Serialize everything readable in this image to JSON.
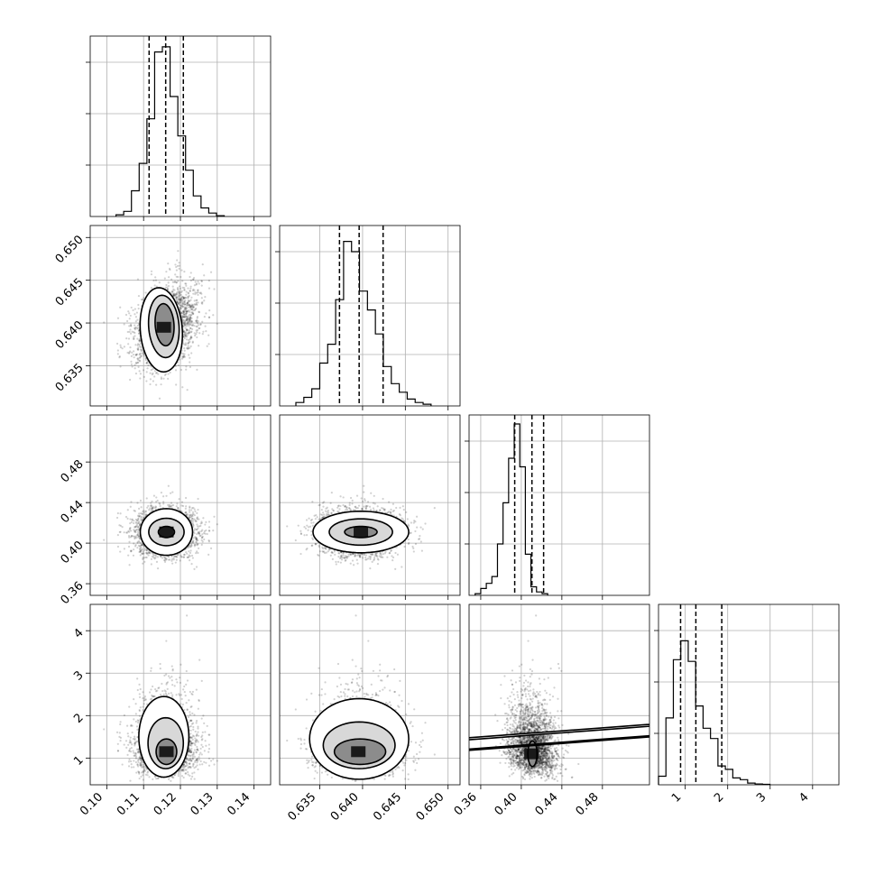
{
  "chart_data": {
    "type": "corner",
    "grid": true,
    "parameters": [
      {
        "ticks": [
          0.1,
          0.11,
          0.12,
          0.13,
          0.14
        ],
        "tick_labels": [
          "0.10",
          "0.11",
          "0.12",
          "0.13",
          "0.14"
        ],
        "range": [
          0.0955,
          0.1445
        ],
        "mean": 0.116,
        "sd": 0.0042,
        "quantiles": [
          0.1115,
          0.116,
          0.1208
        ]
      },
      {
        "ticks": [
          0.635,
          0.64,
          0.645,
          0.65
        ],
        "tick_labels": [
          "0.635",
          "0.640",
          "0.645",
          "0.650"
        ],
        "range": [
          0.6303,
          0.6514
        ],
        "mean": 0.6396,
        "sd": 0.0024,
        "quantiles": [
          0.6373,
          0.6396,
          0.6424
        ]
      },
      {
        "ticks": [
          0.36,
          0.4,
          0.44,
          0.48
        ],
        "tick_labels": [
          "0.36",
          "0.40",
          "0.44",
          "0.48"
        ],
        "range": [
          0.3485,
          0.5264
        ],
        "mean": 0.411,
        "sd": 0.0115,
        "quantiles": [
          0.3935,
          0.4105,
          0.422
        ]
      },
      {
        "ticks": [
          1,
          2,
          3,
          4
        ],
        "tick_labels": [
          "1",
          "2",
          "3",
          "4"
        ],
        "range": [
          0.37,
          4.62
        ],
        "mean": 1.35,
        "sd": 0.45,
        "quantiles": [
          0.89,
          1.25,
          1.86
        ]
      }
    ],
    "histograms": [
      {
        "param": 0,
        "bin_start": 0.1025,
        "bin_width": 0.0021,
        "heights": [
          0.01,
          0.03,
          0.15,
          0.31,
          0.57,
          0.96,
          0.99,
          0.7,
          0.47,
          0.27,
          0.12,
          0.05,
          0.02,
          0.005
        ]
      },
      {
        "param": 1,
        "bin_start": 0.6322,
        "bin_width": 0.00093,
        "heights": [
          0.02,
          0.05,
          0.1,
          0.25,
          0.36,
          0.62,
          0.96,
          0.9,
          0.67,
          0.56,
          0.42,
          0.23,
          0.13,
          0.08,
          0.04,
          0.02,
          0.01
        ]
      },
      {
        "param": 2,
        "bin_start": 0.3545,
        "bin_width": 0.0055,
        "heights": [
          0.01,
          0.04,
          0.07,
          0.11,
          0.3,
          0.54,
          0.8,
          1.0,
          0.75,
          0.24,
          0.05,
          0.02,
          0.01
        ]
      },
      {
        "param": 3,
        "bin_start": 0.37,
        "bin_width": 0.175,
        "heights": [
          0.05,
          0.39,
          0.73,
          0.84,
          0.72,
          0.46,
          0.33,
          0.27,
          0.11,
          0.09,
          0.04,
          0.03,
          0.01,
          0.005,
          0.003
        ]
      }
    ],
    "joint_panels": [
      {
        "x": 0,
        "y": 1,
        "centers": [
          [
            0.1155,
            0.6395
          ]
        ],
        "contours": [
          [
            [
              0.1148,
              0.6392,
              0.0058,
              0.005,
              -10
            ],
            [
              0.1155,
              0.6396,
              0.0042,
              0.0037,
              -10
            ],
            [
              0.1157,
              0.6398,
              0.0026,
              0.0025,
              -10
            ]
          ]
        ]
      },
      {
        "x": 0,
        "y": 2,
        "centers": [
          [
            0.1162,
            0.411
          ]
        ],
        "contours": [
          [
            [
              0.1162,
              0.411,
              0.0071,
              0.023,
              0
            ],
            [
              0.1162,
              0.411,
              0.0048,
              0.0135,
              0
            ],
            [
              0.1162,
              0.411,
              0.0022,
              0.0055,
              0
            ]
          ]
        ]
      },
      {
        "x": 1,
        "y": 2,
        "centers": [
          [
            0.6398,
            0.411
          ]
        ],
        "contours": [
          [
            [
              0.6398,
              0.411,
              0.0056,
              0.0205,
              0
            ],
            [
              0.6398,
              0.411,
              0.0037,
              0.013,
              0
            ],
            [
              0.6398,
              0.411,
              0.0019,
              0.0055,
              0
            ]
          ]
        ]
      },
      {
        "x": 0,
        "y": 3,
        "centers": [
          [
            0.1162,
            1.15
          ]
        ],
        "contours": [
          [
            [
              0.1155,
              1.5,
              0.0068,
              0.95,
              0
            ],
            [
              0.116,
              1.35,
              0.0048,
              0.6,
              0
            ],
            [
              0.1162,
              1.15,
              0.0028,
              0.3,
              0
            ]
          ]
        ]
      },
      {
        "x": 1,
        "y": 3,
        "centers": [
          [
            0.6395,
            1.15
          ]
        ],
        "contours": [
          [
            [
              0.6396,
              1.45,
              0.0058,
              0.95,
              0
            ],
            [
              0.6396,
              1.3,
              0.0042,
              0.55,
              0
            ],
            [
              0.6397,
              1.15,
              0.003,
              0.3,
              0
            ]
          ]
        ]
      },
      {
        "x": 2,
        "y": 3,
        "centers": [
          [
            0.41,
            1.1
          ]
        ],
        "contours": [
          [
            [
              0.402,
              1.55,
              0.015,
              0.95,
              -30
            ],
            [
              0.407,
              1.3,
              0.01,
              0.55,
              -30
            ],
            [
              0.411,
              1.1,
              0.0045,
              0.3,
              0
            ]
          ]
        ]
      }
    ]
  }
}
